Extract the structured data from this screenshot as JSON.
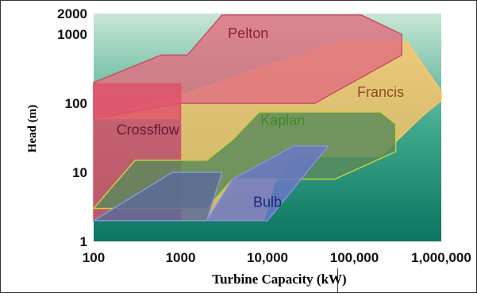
{
  "chart_data": {
    "type": "area",
    "xlabel": "Turbine Capacity (kW)",
    "ylabel": "Head (m)",
    "x_scale": "log",
    "y_scale": "log",
    "xlim": [
      100,
      1000000
    ],
    "ylim": [
      1,
      2000
    ],
    "x_ticks": [
      {
        "value": 100,
        "label": "100"
      },
      {
        "value": 1000,
        "label": "1000"
      },
      {
        "value": 10000,
        "label": "10,000"
      },
      {
        "value": 100000,
        "label": "100,000"
      },
      {
        "value": 1000000,
        "label": "1,000,000"
      }
    ],
    "y_ticks": [
      {
        "value": 1,
        "label": "1"
      },
      {
        "value": 10,
        "label": "10"
      },
      {
        "value": 100,
        "label": "100"
      },
      {
        "value": 1000,
        "label": "1000"
      },
      {
        "value": 2000,
        "label": "2000"
      }
    ],
    "grid": false,
    "regions": [
      {
        "name": "Francis",
        "label": "Francis",
        "fill": "#fcc56a",
        "stroke": "#fcc56a",
        "label_at": [
          200000,
          140
        ],
        "label_color": "#8a5020",
        "polygon": [
          [
            100,
            60
          ],
          [
            1000,
            130
          ],
          [
            70000,
            800
          ],
          [
            400000,
            800
          ],
          [
            1000000,
            150
          ],
          [
            1000000,
            110
          ],
          [
            600000,
            65
          ],
          [
            200000,
            17
          ],
          [
            20000,
            17
          ],
          [
            12000,
            7
          ],
          [
            9000,
            2
          ],
          [
            1800,
            2
          ],
          [
            1000,
            2
          ],
          [
            1000,
            60
          ]
        ]
      },
      {
        "name": "Pelton",
        "label": "Pelton",
        "fill": "#e07080",
        "stroke": "#c85068",
        "label_at": [
          6000,
          1000
        ],
        "label_color": "#8a2030",
        "polygon": [
          [
            100,
            200
          ],
          [
            600,
            500
          ],
          [
            1200,
            500
          ],
          [
            3000,
            1900
          ],
          [
            120000,
            1900
          ],
          [
            350000,
            1000
          ],
          [
            350000,
            500
          ],
          [
            35000,
            100
          ],
          [
            1000,
            100
          ],
          [
            100,
            60
          ]
        ]
      },
      {
        "name": "Crossflow",
        "label": "Crossflow",
        "fill": "#e0506a",
        "stroke": "#e0506a",
        "label_at": [
          420,
          40
        ],
        "label_color": "#6a1a30",
        "polygon": [
          [
            100,
            190
          ],
          [
            1000,
            190
          ],
          [
            1000,
            2
          ],
          [
            100,
            2
          ]
        ]
      },
      {
        "name": "Kaplan",
        "label": "Kaplan",
        "fill": "#5a8a5a",
        "stroke": "#c8d040",
        "label_at": [
          15000,
          55
        ],
        "label_color": "#3f8a2a",
        "polygon": [
          [
            100,
            3
          ],
          [
            300,
            15
          ],
          [
            2000,
            15
          ],
          [
            4000,
            30
          ],
          [
            8000,
            75
          ],
          [
            200000,
            75
          ],
          [
            300000,
            50
          ],
          [
            300000,
            20
          ],
          [
            60000,
            8
          ],
          [
            4000,
            8
          ],
          [
            2000,
            3
          ]
        ]
      },
      {
        "name": "Bulb",
        "label": "Bulb",
        "fill": "#6a78c8",
        "stroke": "#8890e0",
        "label_at": [
          10000,
          3.6
        ],
        "label_color": "#1a2a7a",
        "polygon": [
          [
            2000,
            2
          ],
          [
            4000,
            8
          ],
          [
            20000,
            24
          ],
          [
            50000,
            24
          ],
          [
            10000,
            2
          ]
        ]
      },
      {
        "name": "Lower band",
        "label": "",
        "fill": "#5a6a9a",
        "stroke": "#8898d8",
        "label_at": null,
        "label_color": "",
        "polygon": [
          [
            100,
            2
          ],
          [
            800,
            10
          ],
          [
            3000,
            10
          ],
          [
            2000,
            2
          ]
        ]
      }
    ]
  }
}
